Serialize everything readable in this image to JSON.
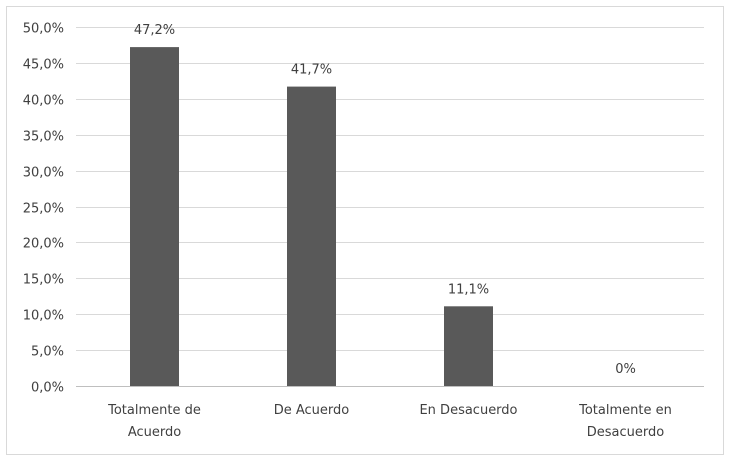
{
  "chart_data": {
    "type": "bar",
    "categories": [
      [
        "Totalmente de",
        "Acuerdo"
      ],
      [
        "De Acuerdo"
      ],
      [
        "En Desacuerdo"
      ],
      [
        "Totalmente en",
        "Desacuerdo"
      ]
    ],
    "values": [
      47.2,
      41.7,
      11.1,
      0
    ],
    "data_labels": [
      "47,2%",
      "41,7%",
      "11,1%",
      "0%"
    ],
    "ylim": [
      0,
      50
    ],
    "yticks": [
      0,
      5,
      10,
      15,
      20,
      25,
      30,
      35,
      40,
      45,
      50
    ],
    "ytick_labels": [
      "0,0%",
      "5,0%",
      "10,0%",
      "15,0%",
      "20,0%",
      "25,0%",
      "30,0%",
      "35,0%",
      "40,0%",
      "45,0%",
      "50,0%"
    ],
    "grid": true,
    "legend": "none",
    "title": "",
    "xlabel": "",
    "ylabel": "",
    "bar_color": "#595959",
    "grid_color": "#d9d9d9"
  }
}
